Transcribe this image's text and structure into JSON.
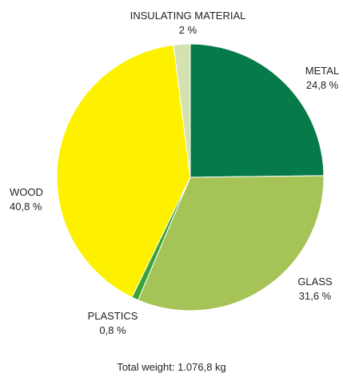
{
  "chart_data": {
    "type": "pie",
    "slices": [
      {
        "name": "METAL",
        "value_label": "24,8 %",
        "value": 24.8,
        "color": "#077a4a"
      },
      {
        "name": "GLASS",
        "value_label": "31,6 %",
        "value": 31.6,
        "color": "#a6c357"
      },
      {
        "name": "PLASTICS",
        "value_label": "0,8 %",
        "value": 0.8,
        "color": "#3aa335"
      },
      {
        "name": "WOOD",
        "value_label": "40,8 %",
        "value": 40.8,
        "color": "#fdf100"
      },
      {
        "name": "INSULATING MATERIAL",
        "value_label": "2 %",
        "value": 2.0,
        "color": "#d3e2ae"
      }
    ],
    "start_position": "12 o'clock, clockwise"
  },
  "footer": {
    "total_label": "Total weight: 1.076,8 kg"
  }
}
